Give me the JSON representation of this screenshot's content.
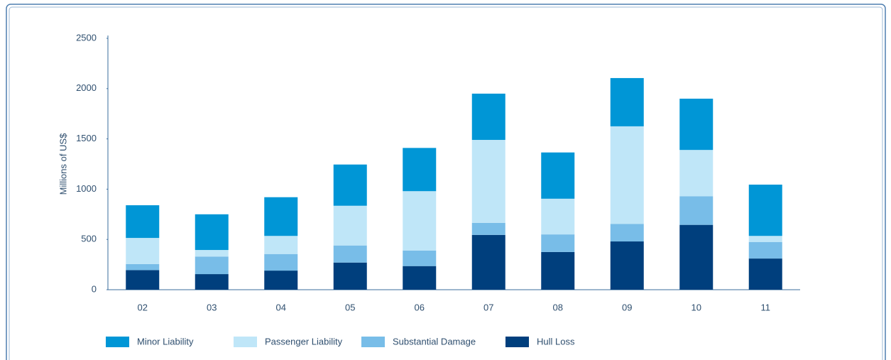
{
  "chart_data": {
    "type": "stacked_bar",
    "y_label": "Millions of US$",
    "categories": [
      "02",
      "03",
      "04",
      "05",
      "06",
      "07",
      "08",
      "09",
      "10",
      "11"
    ],
    "series": [
      {
        "name": "Minor Liability",
        "color": "#0096d6",
        "values": [
          325,
          355,
          385,
          410,
          430,
          460,
          460,
          480,
          510,
          510
        ]
      },
      {
        "name": "Passenger Liability",
        "color": "#bfe6f8",
        "values": [
          260,
          65,
          180,
          395,
          590,
          825,
          355,
          970,
          460,
          60
        ]
      },
      {
        "name": "Substantial Damage",
        "color": "#78bde8",
        "values": [
          60,
          175,
          165,
          170,
          155,
          120,
          175,
          175,
          285,
          165
        ]
      },
      {
        "name": "Hull Loss",
        "color": "#003f7d",
        "values": [
          195,
          155,
          190,
          270,
          235,
          545,
          375,
          480,
          645,
          310
        ]
      }
    ],
    "ylim": [
      0,
      2500
    ],
    "yticks": [
      0,
      500,
      1000,
      1500,
      2000,
      2500
    ],
    "grid": false,
    "legend": "bottom"
  }
}
